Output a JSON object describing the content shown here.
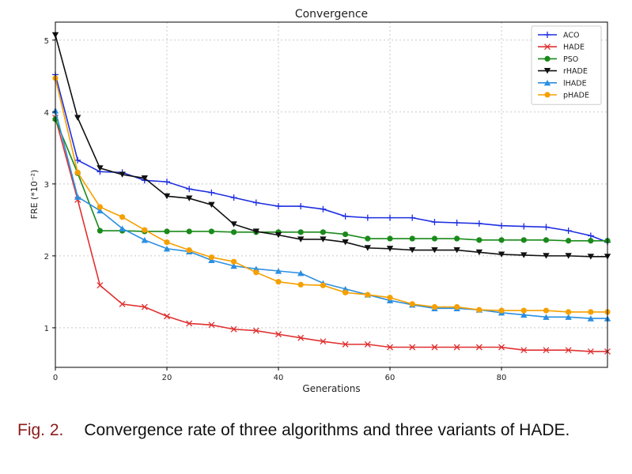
{
  "chart_data": {
    "type": "line",
    "title": "Convergence",
    "xlabel": "Generations",
    "ylabel": "FRE (*10⁻²)",
    "xlim": [
      0,
      99
    ],
    "ylim": [
      0.45,
      5.25
    ],
    "xticks": [
      0,
      20,
      40,
      60,
      80
    ],
    "yticks": [
      1,
      2,
      3,
      4,
      5
    ],
    "grid": true,
    "legend_position": "top-right",
    "x": [
      0,
      4,
      8,
      12,
      16,
      20,
      24,
      28,
      32,
      36,
      40,
      44,
      48,
      52,
      56,
      60,
      64,
      68,
      72,
      76,
      80,
      84,
      88,
      92,
      96,
      99
    ],
    "series": [
      {
        "name": "ACO",
        "color": "#1f2fe0",
        "marker": "plus",
        "values": [
          4.52,
          3.33,
          3.17,
          3.16,
          3.05,
          3.03,
          2.93,
          2.88,
          2.81,
          2.74,
          2.69,
          2.69,
          2.65,
          2.55,
          2.53,
          2.53,
          2.53,
          2.47,
          2.46,
          2.45,
          2.42,
          2.41,
          2.4,
          2.35,
          2.28,
          2.19
        ]
      },
      {
        "name": "HADE",
        "color": "#e03030",
        "marker": "x",
        "values": [
          3.92,
          2.78,
          1.59,
          1.33,
          1.29,
          1.16,
          1.06,
          1.04,
          0.98,
          0.96,
          0.91,
          0.86,
          0.81,
          0.77,
          0.77,
          0.73,
          0.73,
          0.73,
          0.73,
          0.73,
          0.73,
          0.69,
          0.69,
          0.69,
          0.67,
          0.67
        ]
      },
      {
        "name": "PSO",
        "color": "#1a8a1a",
        "marker": "circle",
        "values": [
          3.9,
          3.15,
          2.35,
          2.35,
          2.34,
          2.34,
          2.34,
          2.34,
          2.33,
          2.33,
          2.33,
          2.33,
          2.33,
          2.3,
          2.24,
          2.24,
          2.24,
          2.24,
          2.24,
          2.22,
          2.22,
          2.22,
          2.22,
          2.21,
          2.21,
          2.21
        ]
      },
      {
        "name": "rHADE",
        "color": "#111111",
        "marker": "triangle-down",
        "values": [
          5.07,
          3.92,
          3.22,
          3.13,
          3.08,
          2.83,
          2.8,
          2.71,
          2.44,
          2.34,
          2.29,
          2.23,
          2.23,
          2.19,
          2.11,
          2.1,
          2.08,
          2.08,
          2.08,
          2.05,
          2.02,
          2.01,
          2.0,
          2.0,
          1.99,
          1.99
        ]
      },
      {
        "name": "lHADE",
        "color": "#2b8fe0",
        "marker": "triangle-up",
        "values": [
          4.02,
          2.82,
          2.63,
          2.38,
          2.22,
          2.1,
          2.06,
          1.94,
          1.86,
          1.82,
          1.79,
          1.76,
          1.62,
          1.54,
          1.46,
          1.38,
          1.32,
          1.27,
          1.27,
          1.25,
          1.21,
          1.18,
          1.15,
          1.15,
          1.13,
          1.13
        ]
      },
      {
        "name": "pHADE",
        "color": "#f5a000",
        "marker": "circle",
        "values": [
          4.47,
          3.16,
          2.68,
          2.54,
          2.36,
          2.19,
          2.08,
          1.98,
          1.92,
          1.77,
          1.64,
          1.6,
          1.59,
          1.49,
          1.46,
          1.42,
          1.33,
          1.29,
          1.29,
          1.25,
          1.24,
          1.24,
          1.24,
          1.22,
          1.22,
          1.22
        ]
      }
    ]
  },
  "caption": {
    "label": "Fig. 2.",
    "text": "Convergence rate of three algorithms and three variants of HADE."
  }
}
